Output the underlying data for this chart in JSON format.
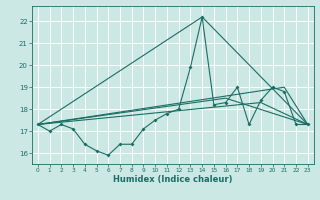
{
  "xlabel": "Humidex (Indice chaleur)",
  "bg_color": "#cce8e4",
  "grid_color": "#ffffff",
  "line_color": "#1a6e64",
  "xlim": [
    -0.5,
    23.5
  ],
  "ylim": [
    15.5,
    22.7
  ],
  "yticks": [
    16,
    17,
    18,
    19,
    20,
    21,
    22
  ],
  "xticks": [
    0,
    1,
    2,
    3,
    4,
    5,
    6,
    7,
    8,
    9,
    10,
    11,
    12,
    13,
    14,
    15,
    16,
    17,
    18,
    19,
    20,
    21,
    22,
    23
  ],
  "series1_x": [
    0,
    1,
    2,
    3,
    4,
    5,
    6,
    7,
    8,
    9,
    10,
    11,
    12,
    13,
    14,
    15,
    16,
    17,
    18,
    19,
    20,
    21,
    22,
    23
  ],
  "series1_y": [
    17.3,
    17.0,
    17.3,
    17.1,
    16.4,
    16.1,
    15.9,
    16.4,
    16.4,
    17.1,
    17.5,
    17.8,
    18.0,
    19.9,
    22.2,
    18.2,
    18.3,
    19.0,
    17.3,
    18.4,
    19.0,
    18.8,
    17.3,
    17.3
  ],
  "line2_x": [
    0,
    14,
    23
  ],
  "line2_y": [
    17.3,
    22.2,
    17.3
  ],
  "line3_x": [
    0,
    16,
    23
  ],
  "line3_y": [
    17.3,
    18.5,
    17.3
  ],
  "line4_x": [
    0,
    21,
    23
  ],
  "line4_y": [
    17.3,
    19.0,
    17.3
  ],
  "line5_x": [
    0,
    19,
    23
  ],
  "line5_y": [
    17.3,
    18.3,
    17.3
  ]
}
